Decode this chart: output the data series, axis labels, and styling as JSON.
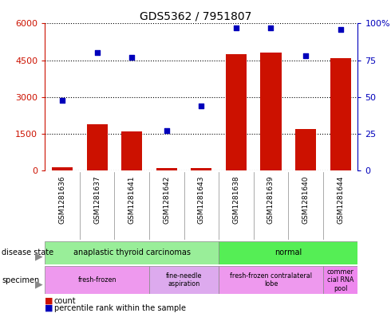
{
  "title": "GDS5362 / 7951807",
  "samples": [
    "GSM1281636",
    "GSM1281637",
    "GSM1281641",
    "GSM1281642",
    "GSM1281643",
    "GSM1281638",
    "GSM1281639",
    "GSM1281640",
    "GSM1281644"
  ],
  "counts": [
    120,
    1900,
    1600,
    90,
    110,
    4750,
    4800,
    1700,
    4600
  ],
  "percentiles": [
    48,
    80,
    77,
    27,
    44,
    97,
    97,
    78,
    96
  ],
  "ylim_left": [
    0,
    6000
  ],
  "ylim_right": [
    0,
    100
  ],
  "yticks_left": [
    0,
    1500,
    3000,
    4500,
    6000
  ],
  "yticks_right": [
    0,
    25,
    50,
    75,
    100
  ],
  "ytick_right_labels": [
    "0",
    "25",
    "50",
    "75",
    "100%"
  ],
  "bar_color": "#cc1100",
  "dot_color": "#0000bb",
  "disease_state_groups": [
    {
      "label": "anaplastic thyroid carcinomas",
      "start": 0,
      "end": 5,
      "color": "#99ee99"
    },
    {
      "label": "normal",
      "start": 5,
      "end": 9,
      "color": "#55ee55"
    }
  ],
  "specimen_groups": [
    {
      "label": "fresh-frozen",
      "start": 0,
      "end": 3,
      "color": "#ee99ee"
    },
    {
      "label": "fine-needle\naspiration",
      "start": 3,
      "end": 5,
      "color": "#ddaaee"
    },
    {
      "label": "fresh-frozen contralateral\nlobe",
      "start": 5,
      "end": 8,
      "color": "#ee99ee"
    },
    {
      "label": "commer\ncial RNA\npool",
      "start": 8,
      "end": 9,
      "color": "#ee88ee"
    }
  ],
  "xlabel_bg_color": "#cccccc",
  "legend_count_color": "#cc1100",
  "legend_pct_color": "#0000bb",
  "left_axis_color": "#cc1100",
  "right_axis_color": "#0000bb",
  "label_ds": "disease state",
  "label_sp": "specimen",
  "legend_count_text": "count",
  "legend_pct_text": "percentile rank within the sample"
}
